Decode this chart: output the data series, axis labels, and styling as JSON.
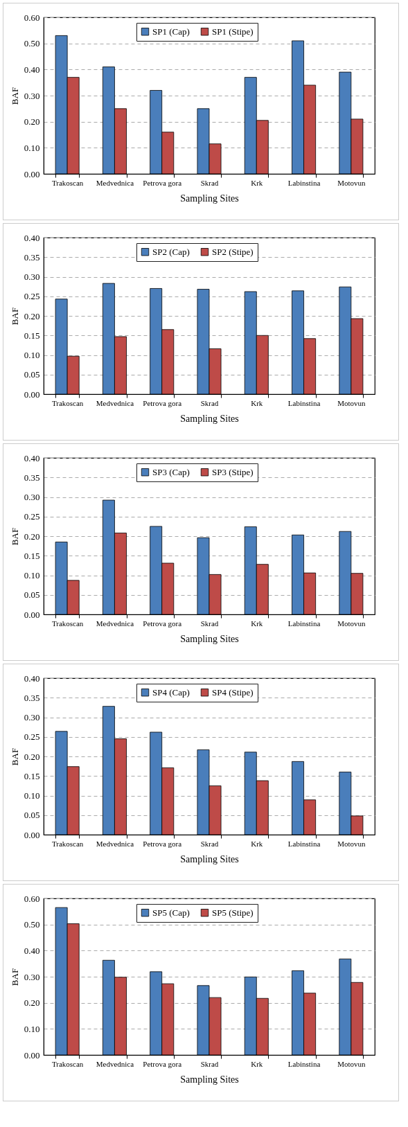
{
  "chart_data": [
    {
      "type": "bar",
      "xlabel": "Sampling Sites",
      "ylabel": "BAF",
      "categories": [
        "Trakoscan",
        "Medvednica",
        "Petrova gora",
        "Skrad",
        "Krk",
        "Labinstina",
        "Motovun"
      ],
      "ylim": [
        0,
        0.6
      ],
      "yticks": [
        {
          "value": 0,
          "label": "0.00"
        },
        {
          "value": 0.1,
          "label": "0.10"
        },
        {
          "value": 0.2,
          "label": "0.20"
        },
        {
          "value": 0.3,
          "label": "0.30"
        },
        {
          "value": 0.4,
          "label": "0.40"
        },
        {
          "value": 0.5,
          "label": "0.50"
        },
        {
          "value": 0.6,
          "label": "0.60"
        }
      ],
      "grid": "y",
      "legend": "top",
      "series": [
        {
          "name": "SP1 (Cap)",
          "color": "#4a7ebb",
          "values": [
            0.53,
            0.41,
            0.32,
            0.25,
            0.37,
            0.51,
            0.39
          ]
        },
        {
          "name": "SP1 (Stipe)",
          "color": "#be4b48",
          "values": [
            0.37,
            0.25,
            0.16,
            0.115,
            0.205,
            0.34,
            0.21
          ]
        }
      ]
    },
    {
      "type": "bar",
      "xlabel": "Sampling Sites",
      "ylabel": "BAF",
      "categories": [
        "Trakoscan",
        "Medvednica",
        "Petrova gora",
        "Skrad",
        "Krk",
        "Labinstina",
        "Motovun"
      ],
      "ylim": [
        0,
        0.4
      ],
      "yticks": [
        {
          "value": 0,
          "label": "0.00"
        },
        {
          "value": 0.05,
          "label": "0.05"
        },
        {
          "value": 0.1,
          "label": "0.10"
        },
        {
          "value": 0.15,
          "label": "0.15"
        },
        {
          "value": 0.2,
          "label": "0.20"
        },
        {
          "value": 0.25,
          "label": "0.25"
        },
        {
          "value": 0.3,
          "label": "0.30"
        },
        {
          "value": 0.35,
          "label": "0.35"
        },
        {
          "value": 0.4,
          "label": "0.40"
        }
      ],
      "grid": "y",
      "legend": "top",
      "series": [
        {
          "name": "SP2 (Cap)",
          "color": "#4a7ebb",
          "values": [
            0.243,
            0.283,
            0.27,
            0.268,
            0.262,
            0.264,
            0.274
          ]
        },
        {
          "name": "SP2 (Stipe)",
          "color": "#be4b48",
          "values": [
            0.097,
            0.147,
            0.165,
            0.116,
            0.15,
            0.142,
            0.193
          ]
        }
      ]
    },
    {
      "type": "bar",
      "xlabel": "Sampling Sites",
      "ylabel": "BAF",
      "categories": [
        "Trakoscan",
        "Medvednica",
        "Petrova gora",
        "Skrad",
        "Krk",
        "Labinstina",
        "Motovun"
      ],
      "ylim": [
        0,
        0.4
      ],
      "yticks": [
        {
          "value": 0,
          "label": "0.00"
        },
        {
          "value": 0.05,
          "label": "0.05"
        },
        {
          "value": 0.1,
          "label": "0.10"
        },
        {
          "value": 0.15,
          "label": "0.15"
        },
        {
          "value": 0.2,
          "label": "0.20"
        },
        {
          "value": 0.25,
          "label": "0.25"
        },
        {
          "value": 0.3,
          "label": "0.30"
        },
        {
          "value": 0.35,
          "label": "0.35"
        },
        {
          "value": 0.4,
          "label": "0.40"
        }
      ],
      "grid": "y",
      "legend": "top",
      "series": [
        {
          "name": "SP3 (Cap)",
          "color": "#4a7ebb",
          "values": [
            0.185,
            0.292,
            0.225,
            0.196,
            0.224,
            0.203,
            0.212
          ]
        },
        {
          "name": "SP3 (Stipe)",
          "color": "#be4b48",
          "values": [
            0.087,
            0.208,
            0.131,
            0.102,
            0.128,
            0.106,
            0.105
          ]
        }
      ]
    },
    {
      "type": "bar",
      "xlabel": "Sampling Sites",
      "ylabel": "BAF",
      "categories": [
        "Trakoscan",
        "Medvednica",
        "Petrova gora",
        "Skrad",
        "Krk",
        "Labinstina",
        "Motovun"
      ],
      "ylim": [
        0,
        0.4
      ],
      "yticks": [
        {
          "value": 0,
          "label": "0.00"
        },
        {
          "value": 0.05,
          "label": "0.05"
        },
        {
          "value": 0.1,
          "label": "0.10"
        },
        {
          "value": 0.15,
          "label": "0.15"
        },
        {
          "value": 0.2,
          "label": "0.20"
        },
        {
          "value": 0.25,
          "label": "0.25"
        },
        {
          "value": 0.3,
          "label": "0.30"
        },
        {
          "value": 0.35,
          "label": "0.35"
        },
        {
          "value": 0.4,
          "label": "0.40"
        }
      ],
      "grid": "y",
      "legend": "top",
      "series": [
        {
          "name": "SP4 (Cap)",
          "color": "#4a7ebb",
          "values": [
            0.264,
            0.328,
            0.262,
            0.217,
            0.211,
            0.187,
            0.16
          ]
        },
        {
          "name": "SP4 (Stipe)",
          "color": "#be4b48",
          "values": [
            0.174,
            0.245,
            0.171,
            0.125,
            0.138,
            0.089,
            0.048
          ]
        }
      ]
    },
    {
      "type": "bar",
      "xlabel": "Sampling Sites",
      "ylabel": "BAF",
      "categories": [
        "Trakoscan",
        "Medvednica",
        "Petrova gora",
        "Skrad",
        "Krk",
        "Labinstina",
        "Motovun"
      ],
      "ylim": [
        0,
        0.6
      ],
      "yticks": [
        {
          "value": 0,
          "label": "0.00"
        },
        {
          "value": 0.1,
          "label": "0.10"
        },
        {
          "value": 0.2,
          "label": "0.20"
        },
        {
          "value": 0.3,
          "label": "0.30"
        },
        {
          "value": 0.4,
          "label": "0.40"
        },
        {
          "value": 0.5,
          "label": "0.50"
        },
        {
          "value": 0.6,
          "label": "0.60"
        }
      ],
      "grid": "y",
      "legend": "top",
      "series": [
        {
          "name": "SP5 (Cap)",
          "color": "#4a7ebb",
          "values": [
            0.565,
            0.363,
            0.319,
            0.266,
            0.299,
            0.323,
            0.368
          ]
        },
        {
          "name": "SP5 (Stipe)",
          "color": "#be4b48",
          "values": [
            0.503,
            0.298,
            0.273,
            0.22,
            0.217,
            0.237,
            0.278
          ]
        }
      ]
    }
  ]
}
